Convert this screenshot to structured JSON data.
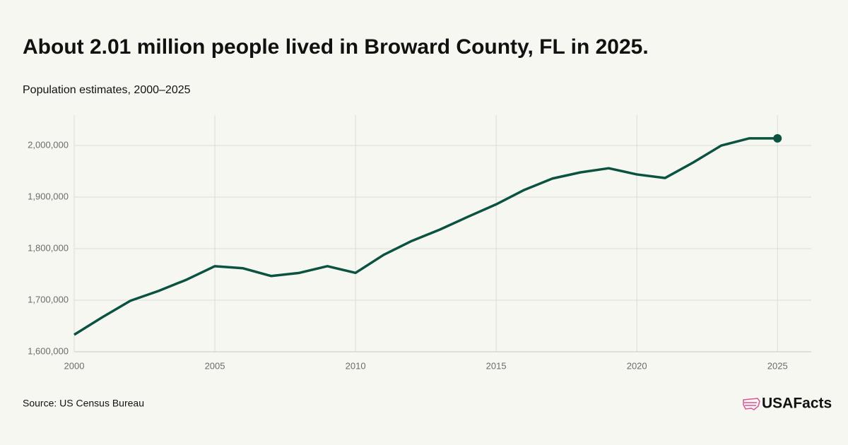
{
  "chart_data": {
    "type": "line",
    "title": "About 2.01 million people lived in Broward County, FL in 2025.",
    "subtitle": "Population estimates, 2000–2025",
    "source": "Source: US Census Bureau",
    "logo": "USAFacts",
    "x": [
      2000,
      2001,
      2002,
      2003,
      2004,
      2005,
      2006,
      2007,
      2008,
      2009,
      2010,
      2011,
      2012,
      2013,
      2014,
      2015,
      2016,
      2017,
      2018,
      2019,
      2020,
      2021,
      2022,
      2023,
      2024,
      2025
    ],
    "values": [
      1633000,
      1667000,
      1699000,
      1718000,
      1740000,
      1766000,
      1762000,
      1747000,
      1753000,
      1766000,
      1753000,
      1788000,
      1815000,
      1837000,
      1862000,
      1886000,
      1914000,
      1936000,
      1948000,
      1956000,
      1944000,
      1937000,
      1967000,
      2000000,
      2014000,
      2014000
    ],
    "color": "#0b5240",
    "xlim": [
      2000,
      2026.2
    ],
    "xticks": [
      2000,
      2005,
      2010,
      2015,
      2020,
      2025
    ],
    "ylim": [
      1600000,
      2059000
    ],
    "yticks": [
      {
        "value": 1600000,
        "label": "1,600,000"
      },
      {
        "value": 1700000,
        "label": "1,700,000"
      },
      {
        "value": 1800000,
        "label": "1,800,000"
      },
      {
        "value": 1900000,
        "label": "1,900,000"
      },
      {
        "value": 2000000,
        "label": "2,000,000"
      }
    ],
    "grid": true
  }
}
